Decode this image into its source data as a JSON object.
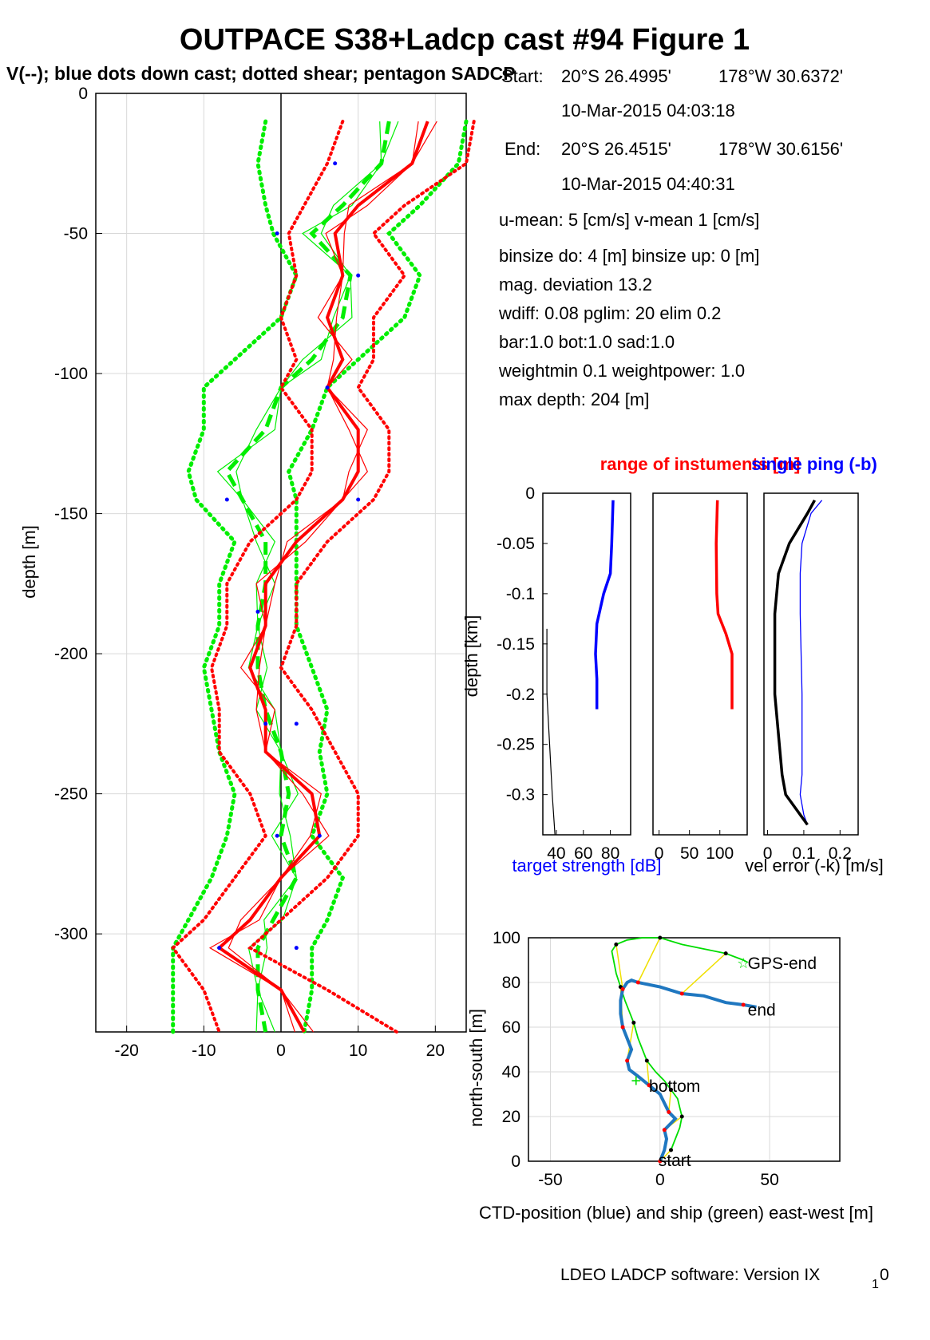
{
  "figure": {
    "title": "OUTPACE S38+Ladcp cast #94  Figure 1",
    "subtitle": "V(--); blue dots down cast; dotted shear; pentagon SADCP",
    "footer_main": "LDEO LADCP software: Version IX",
    "footer_sub": "1",
    "footer_tail": "0"
  },
  "info": [
    {
      "label": "Start:",
      "lat": "20°S 26.4995'",
      "lon": "178°W 30.6372'"
    },
    {
      "time": "10-Mar-2015 04:03:18"
    },
    {
      "label": "End:",
      "lat": "20°S 26.4515'",
      "lon": "178°W 30.6156'"
    },
    {
      "time": "10-Mar-2015 04:40:31"
    },
    {
      "text": "u-mean:   5 [cm/s]    v-mean   1 [cm/s]"
    },
    {
      "text": "binsize do: 4 [m]  binsize up:  0 [m]"
    },
    {
      "text": "mag. deviation 13.2"
    },
    {
      "text": "wdiff: 0.08  pglim: 20  elim 0.2"
    },
    {
      "text": "  bar:1.0 bot:1.0 sad:1.0"
    },
    {
      "text": "weightmin 0.1  weightpower: 1.0"
    },
    {
      "text": "max depth: 204 [m]"
    }
  ],
  "colors": {
    "u": "#ff0000",
    "v": "#00ee00",
    "blue": "#0000ff",
    "track": "#1f77c0",
    "ship": "#00dd00",
    "yellow": "#f0e000",
    "grid": "#d9d9d9"
  },
  "chart_data": [
    {
      "id": "velocity_profile",
      "type": "line",
      "ylabel": "depth [m]",
      "xlim": [
        -24,
        24
      ],
      "ylim": [
        -335,
        0
      ],
      "xticks": [
        -20,
        -10,
        0,
        10,
        20
      ],
      "yticks": [
        0,
        -50,
        -100,
        -150,
        -200,
        -250,
        -300
      ],
      "grid": true,
      "depth": [
        -10,
        -25,
        -40,
        -50,
        -65,
        -80,
        -95,
        -105,
        -120,
        -135,
        -145,
        -160,
        -175,
        -190,
        -205,
        -220,
        -235,
        -250,
        -265,
        -280,
        -295,
        -305,
        -320,
        -335
      ],
      "series": [
        {
          "name": "u",
          "role": "mean",
          "values": [
            19,
            17,
            10,
            7,
            8,
            6,
            8,
            6,
            10,
            10,
            8,
            2,
            -2,
            -2,
            -4,
            -2,
            -2,
            4,
            5,
            0,
            -4,
            -8,
            0,
            3
          ]
        },
        {
          "name": "u",
          "role": "shear-upper",
          "values": [
            25,
            24,
            16,
            12,
            16,
            12,
            12,
            10,
            14,
            14,
            12,
            6,
            2,
            2,
            0,
            4,
            7,
            10,
            10,
            6,
            0,
            -4,
            6,
            15
          ]
        },
        {
          "name": "u",
          "role": "shear-lower",
          "values": [
            8,
            6,
            3,
            1,
            2,
            0,
            2,
            0,
            4,
            4,
            2,
            -4,
            -7,
            -7,
            -9,
            -8,
            -8,
            -4,
            -2,
            -6,
            -10,
            -14,
            -10,
            -8
          ]
        },
        {
          "name": "v",
          "role": "mean",
          "values": [
            14,
            13,
            8,
            4,
            9,
            8,
            4,
            0,
            -2,
            -7,
            -5,
            -2,
            -2,
            -3,
            -3,
            -2,
            0,
            1,
            0,
            2,
            -1,
            -3,
            -3,
            -2
          ]
        },
        {
          "name": "v",
          "role": "shear-upper",
          "values": [
            24,
            23,
            18,
            14,
            18,
            16,
            10,
            6,
            4,
            1,
            2,
            2,
            2,
            2,
            4,
            6,
            5,
            6,
            4,
            8,
            6,
            4,
            4,
            3
          ]
        },
        {
          "name": "v",
          "role": "shear-lower",
          "values": [
            -2,
            -3,
            -2,
            -1,
            2,
            0,
            -6,
            -10,
            -10,
            -12,
            -11,
            -6,
            -8,
            -8,
            -10,
            -9,
            -8,
            -6,
            -7,
            -9,
            -12,
            -14,
            -14,
            -14
          ]
        }
      ],
      "downcast_dots_depth": [
        -25,
        -50,
        -65,
        -105,
        -145,
        -145,
        -185,
        -225,
        -225,
        -265,
        -265,
        -305,
        -305
      ],
      "downcast_dots_value": [
        7,
        -0.5,
        10,
        6,
        10,
        -7,
        -3,
        -2,
        2,
        -0.5,
        5,
        -8,
        2
      ]
    },
    {
      "id": "target_strength",
      "type": "line",
      "xlabel": "target strength [dB]",
      "ylabel": "depth [km]",
      "xlim": [
        30,
        95
      ],
      "ylim": [
        -0.34,
        0
      ],
      "xticks": [
        40,
        60,
        80
      ],
      "yticks": [
        0,
        -0.05,
        -0.1,
        -0.15,
        -0.2,
        -0.25,
        -0.3
      ],
      "depth": [
        -0.007,
        -0.05,
        -0.08,
        -0.1,
        -0.13,
        -0.16,
        -0.185,
        -0.215
      ],
      "series": [
        {
          "name": "target strength",
          "values": [
            82,
            81,
            80,
            75,
            70,
            69,
            70,
            70
          ]
        }
      ],
      "series_k": {
        "depth": [
          -0.135,
          -0.2,
          -0.25,
          -0.3,
          -0.34
        ],
        "values": [
          33,
          33,
          35,
          37,
          39
        ]
      }
    },
    {
      "id": "range",
      "type": "line",
      "title": "range of instuments [m]",
      "xlim": [
        -10,
        145
      ],
      "ylim": [
        -0.34,
        0
      ],
      "xticks": [
        0,
        50,
        100
      ],
      "depth": [
        -0.007,
        -0.05,
        -0.1,
        -0.12,
        -0.14,
        -0.16,
        -0.18,
        -0.215
      ],
      "series": [
        {
          "name": "range",
          "values": [
            96,
            94,
            95,
            97,
            110,
            120,
            120,
            120
          ]
        }
      ]
    },
    {
      "id": "vel_error",
      "type": "line",
      "title": "single ping (-b)",
      "xlabel": "vel error (-k) [m/s]",
      "xlim": [
        -0.01,
        0.25
      ],
      "ylim": [
        -0.34,
        0
      ],
      "xticks": [
        0,
        0.1,
        0.2
      ],
      "depth": [
        -0.007,
        -0.02,
        -0.05,
        -0.08,
        -0.12,
        -0.2,
        -0.28,
        -0.3,
        -0.32,
        -0.33
      ],
      "series": [
        {
          "name": "single ping",
          "values": [
            0.15,
            0.12,
            0.095,
            0.09,
            0.09,
            0.095,
            0.095,
            0.09,
            0.1,
            0.11
          ]
        },
        {
          "name": "vel error",
          "values": [
            0.13,
            0.11,
            0.06,
            0.03,
            0.02,
            0.02,
            0.04,
            0.05,
            0.09,
            0.11
          ]
        }
      ]
    },
    {
      "id": "positions",
      "type": "line",
      "xlabel": "CTD-position (blue) and ship (green) east-west [m]",
      "ylabel": "north-south [m]",
      "xlim": [
        -60,
        82
      ],
      "ylim": [
        0,
        100
      ],
      "xticks": [
        -50,
        0,
        50
      ],
      "yticks": [
        0,
        20,
        40,
        60,
        80,
        100
      ],
      "grid": true,
      "ctd_x": [
        0,
        2,
        3,
        2,
        5,
        7,
        4,
        2,
        0,
        -5,
        -10,
        -14,
        -15,
        -13,
        -15,
        -17,
        -18,
        -18,
        -17,
        -15,
        -13,
        -10,
        -5,
        0,
        10,
        20,
        30,
        38,
        44
      ],
      "ctd_y": [
        0,
        5,
        10,
        14,
        17,
        19,
        22,
        26,
        30,
        34,
        38,
        41,
        45,
        50,
        55,
        60,
        66,
        72,
        77,
        80,
        81,
        80,
        79,
        78,
        75,
        74,
        71,
        70,
        69
      ],
      "ship_x": [
        5,
        7,
        9,
        10,
        9,
        8,
        5,
        2,
        -2,
        -6,
        -8,
        -10,
        -12,
        -14,
        -16,
        -18,
        -20,
        -22,
        -20,
        -15,
        -8,
        0,
        10,
        20,
        30,
        38,
        40
      ],
      "ship_y": [
        5,
        10,
        15,
        20,
        24,
        28,
        32,
        36,
        40,
        45,
        50,
        55,
        62,
        67,
        72,
        78,
        84,
        94,
        97,
        99,
        100,
        100,
        97,
        95,
        93,
        90,
        89
      ],
      "labels": {
        "start": "start",
        "bottom": "bottom",
        "end": "end",
        "gps_end": "GPS-end"
      }
    }
  ]
}
